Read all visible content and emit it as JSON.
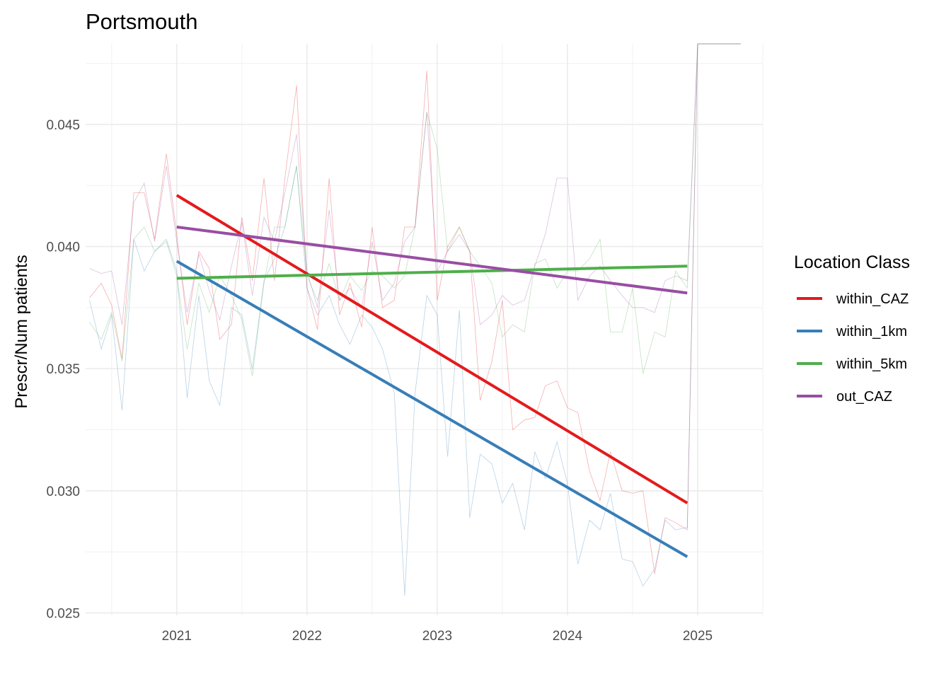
{
  "chart_data": {
    "type": "line",
    "title": "Portsmouth",
    "xlabel": "",
    "ylabel": "Prescr/Num patients",
    "xlim": [
      2020.3,
      2025.5
    ],
    "ylim": [
      0.0249,
      0.0483
    ],
    "x_ticks": [
      2021,
      2022,
      2023,
      2024,
      2025
    ],
    "x_tick_labels": [
      "2021",
      "2022",
      "2023",
      "2024",
      "2025"
    ],
    "y_ticks": [
      0.025,
      0.03,
      0.035,
      0.04,
      0.045
    ],
    "y_tick_labels": [
      "0.025",
      "0.030",
      "0.035",
      "0.040",
      "0.045"
    ],
    "grid": true,
    "legend": {
      "title": "Location Class",
      "position": "right",
      "items": [
        "within_CAZ",
        "within_1km",
        "within_5km",
        "out_CAZ"
      ]
    },
    "series": [
      {
        "name": "within_CAZ",
        "color": "#e41a1c",
        "trend": {
          "x": [
            2021.0,
            2024.92
          ],
          "y": [
            0.0421,
            0.0295
          ]
        },
        "raw": {
          "x": [
            2020.33,
            2020.42,
            2020.5,
            2020.58,
            2020.67,
            2020.75,
            2020.83,
            2020.92,
            2021.0,
            2021.08,
            2021.17,
            2021.25,
            2021.33,
            2021.42,
            2021.5,
            2021.58,
            2021.67,
            2021.75,
            2021.83,
            2021.92,
            2022.0,
            2022.08,
            2022.17,
            2022.25,
            2022.33,
            2022.42,
            2022.5,
            2022.58,
            2022.67,
            2022.75,
            2022.83,
            2022.92,
            2023.0,
            2023.08,
            2023.17,
            2023.25,
            2023.33,
            2023.42,
            2023.5,
            2023.58,
            2023.67,
            2023.75,
            2023.83,
            2023.92,
            2024.0,
            2024.08,
            2024.17,
            2024.25,
            2024.33,
            2024.42,
            2024.5,
            2024.58,
            2024.67,
            2024.75,
            2024.83,
            2024.92,
            2025.0
          ],
          "y": [
            0.0379,
            0.0385,
            0.0376,
            0.0354,
            0.0422,
            0.0422,
            0.0403,
            0.0438,
            0.0405,
            0.0368,
            0.0398,
            0.0391,
            0.0362,
            0.0368,
            0.0412,
            0.0386,
            0.0428,
            0.0386,
            0.0428,
            0.0466,
            0.0383,
            0.0366,
            0.0428,
            0.0372,
            0.0385,
            0.0367,
            0.0408,
            0.0375,
            0.0378,
            0.0408,
            0.0408,
            0.0472,
            0.0378,
            0.04,
            0.0408,
            0.0398,
            0.0337,
            0.0353,
            0.0378,
            0.0325,
            0.0329,
            0.033,
            0.0343,
            0.0345,
            0.0334,
            0.0332,
            0.0308,
            0.0296,
            0.0316,
            0.03,
            0.0299,
            0.03,
            0.0266,
            0.0289,
            0.0287,
            0.0284,
            0.0483
          ]
        }
      },
      {
        "name": "within_1km",
        "color": "#377eb8",
        "trend": {
          "x": [
            2021.0,
            2024.92
          ],
          "y": [
            0.0394,
            0.0273
          ]
        },
        "raw": {
          "x": [
            2020.33,
            2020.42,
            2020.5,
            2020.58,
            2020.67,
            2020.75,
            2020.83,
            2020.92,
            2021.0,
            2021.08,
            2021.17,
            2021.25,
            2021.33,
            2021.42,
            2021.5,
            2021.58,
            2021.67,
            2021.75,
            2021.83,
            2021.92,
            2022.0,
            2022.08,
            2022.17,
            2022.25,
            2022.33,
            2022.42,
            2022.5,
            2022.58,
            2022.67,
            2022.75,
            2022.83,
            2022.92,
            2023.0,
            2023.08,
            2023.17,
            2023.25,
            2023.33,
            2023.42,
            2023.5,
            2023.58,
            2023.67,
            2023.75,
            2023.83,
            2023.92,
            2024.0,
            2024.08,
            2024.17,
            2024.25,
            2024.33,
            2024.42,
            2024.5,
            2024.58,
            2024.67,
            2024.75,
            2024.83,
            2024.92,
            2025.0
          ],
          "y": [
            0.0378,
            0.0358,
            0.0372,
            0.0333,
            0.0403,
            0.039,
            0.0398,
            0.0403,
            0.039,
            0.0338,
            0.038,
            0.0345,
            0.0335,
            0.0375,
            0.0372,
            0.035,
            0.0386,
            0.0395,
            0.0408,
            0.0433,
            0.0383,
            0.0372,
            0.038,
            0.0368,
            0.036,
            0.0372,
            0.0367,
            0.0358,
            0.034,
            0.0257,
            0.034,
            0.038,
            0.0372,
            0.0314,
            0.0374,
            0.0289,
            0.0315,
            0.0311,
            0.0295,
            0.0303,
            0.0284,
            0.0316,
            0.0305,
            0.032,
            0.0303,
            0.027,
            0.0288,
            0.0284,
            0.0299,
            0.0272,
            0.0271,
            0.0261,
            0.0268,
            0.0288,
            0.0284,
            0.0285,
            0.0483
          ]
        }
      },
      {
        "name": "within_5km",
        "color": "#4daf4a",
        "trend": {
          "x": [
            2021.0,
            2024.92
          ],
          "y": [
            0.0387,
            0.0392
          ]
        },
        "raw": {
          "x": [
            2020.33,
            2020.42,
            2020.5,
            2020.58,
            2020.67,
            2020.75,
            2020.83,
            2020.92,
            2021.0,
            2021.08,
            2021.17,
            2021.25,
            2021.33,
            2021.42,
            2021.5,
            2021.58,
            2021.67,
            2021.75,
            2021.83,
            2021.92,
            2022.0,
            2022.08,
            2022.17,
            2022.25,
            2022.33,
            2022.42,
            2022.5,
            2022.58,
            2022.67,
            2022.75,
            2022.83,
            2022.92,
            2023.0,
            2023.08,
            2023.17,
            2023.25,
            2023.33,
            2023.42,
            2023.5,
            2023.58,
            2023.67,
            2023.75,
            2023.83,
            2023.92,
            2024.0,
            2024.08,
            2024.17,
            2024.25,
            2024.33,
            2024.42,
            2024.5,
            2024.58,
            2024.67,
            2024.75,
            2024.83,
            2024.92,
            2025.0
          ],
          "y": [
            0.0369,
            0.0362,
            0.0373,
            0.0353,
            0.0403,
            0.0408,
            0.0398,
            0.0402,
            0.0388,
            0.0358,
            0.0385,
            0.0373,
            0.0388,
            0.038,
            0.037,
            0.0347,
            0.0385,
            0.0408,
            0.0408,
            0.0433,
            0.0388,
            0.0378,
            0.0393,
            0.0378,
            0.0388,
            0.0382,
            0.039,
            0.0388,
            0.0383,
            0.0388,
            0.0408,
            0.0455,
            0.044,
            0.0398,
            0.0408,
            0.0398,
            0.0392,
            0.0385,
            0.0363,
            0.0368,
            0.0365,
            0.0393,
            0.0395,
            0.0383,
            0.039,
            0.039,
            0.0395,
            0.0403,
            0.0365,
            0.0365,
            0.0383,
            0.0348,
            0.0365,
            0.0363,
            0.039,
            0.0383,
            0.0483
          ]
        }
      },
      {
        "name": "out_CAZ",
        "color": "#984ea3",
        "trend": {
          "x": [
            2021.0,
            2024.92
          ],
          "y": [
            0.0408,
            0.0381
          ]
        },
        "raw": {
          "x": [
            2020.33,
            2020.42,
            2020.5,
            2020.58,
            2020.67,
            2020.75,
            2020.83,
            2020.92,
            2021.0,
            2021.08,
            2021.17,
            2021.25,
            2021.33,
            2021.42,
            2021.5,
            2021.58,
            2021.67,
            2021.75,
            2021.83,
            2021.92,
            2022.0,
            2022.08,
            2022.17,
            2022.25,
            2022.33,
            2022.42,
            2022.5,
            2022.58,
            2022.67,
            2022.75,
            2022.83,
            2022.92,
            2023.0,
            2023.08,
            2023.17,
            2023.25,
            2023.33,
            2023.42,
            2023.5,
            2023.58,
            2023.67,
            2023.75,
            2023.83,
            2023.92,
            2024.0,
            2024.08,
            2024.17,
            2024.25,
            2024.33,
            2024.42,
            2024.5,
            2024.58,
            2024.67,
            2024.75,
            2024.83,
            2024.92,
            2025.0
          ],
          "y": [
            0.0391,
            0.0389,
            0.039,
            0.0368,
            0.0418,
            0.0426,
            0.0402,
            0.0433,
            0.0402,
            0.0373,
            0.0397,
            0.0382,
            0.037,
            0.0392,
            0.041,
            0.038,
            0.0412,
            0.0402,
            0.0422,
            0.0446,
            0.039,
            0.0375,
            0.0415,
            0.0378,
            0.0383,
            0.0375,
            0.0402,
            0.0378,
            0.0385,
            0.0402,
            0.0408,
            0.0455,
            0.039,
            0.0398,
            0.0405,
            0.0398,
            0.0368,
            0.0372,
            0.038,
            0.0376,
            0.0378,
            0.0392,
            0.0405,
            0.0428,
            0.0428,
            0.0378,
            0.0388,
            0.0392,
            0.0386,
            0.038,
            0.0375,
            0.0375,
            0.0373,
            0.0386,
            0.0388,
            0.0386,
            0.0483
          ]
        }
      }
    ],
    "constant_line": {
      "color": "#999999",
      "x": [
        2025.0,
        2025.33
      ],
      "y": [
        0.0483,
        0.0483
      ]
    }
  }
}
